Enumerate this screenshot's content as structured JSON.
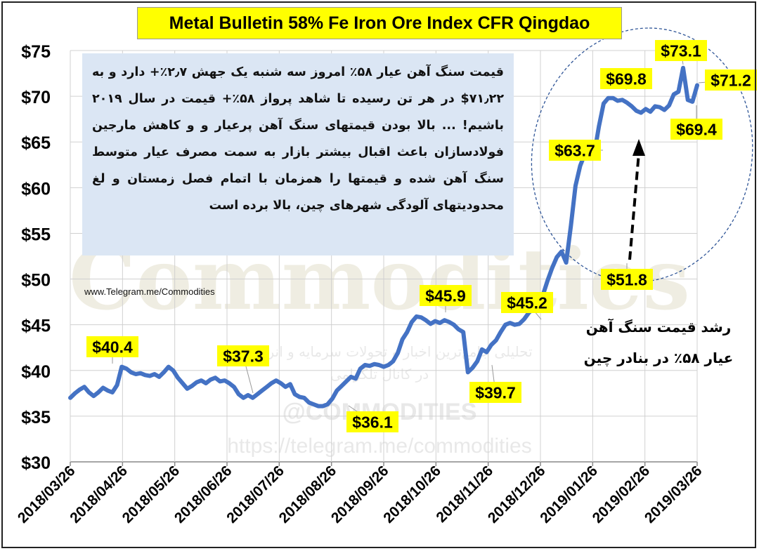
{
  "chart_data": {
    "type": "line",
    "title": "Metal Bulletin 58% Fe Iron Ore Index CFR Qingdao",
    "xlabel": "",
    "ylabel": "",
    "ylim": [
      30,
      75
    ],
    "y_ticks": [
      "$30",
      "$35",
      "$40",
      "$45",
      "$50",
      "$55",
      "$60",
      "$65",
      "$70",
      "$75"
    ],
    "x_ticks": [
      "2018/03/26",
      "2018/04/26",
      "2018/05/26",
      "2018/06/26",
      "2018/07/26",
      "2018/08/26",
      "2018/09/26",
      "2018/10/26",
      "2018/11/26",
      "2018/12/26",
      "2019/01/26",
      "2019/02/26",
      "2019/03/26"
    ],
    "grid": true,
    "series": [
      {
        "values": [
          37.0,
          37.5,
          37.9,
          38.2,
          37.6,
          37.2,
          37.6,
          38.1,
          37.8,
          37.6,
          38.4,
          40.4,
          40.2,
          39.8,
          39.6,
          39.7,
          39.5,
          39.4,
          39.6,
          39.3,
          39.8,
          40.4,
          40.0,
          39.2,
          38.6,
          38.0,
          38.3,
          38.7,
          38.9,
          38.6,
          39.0,
          39.2,
          38.8,
          38.9,
          38.6,
          38.2,
          37.4,
          37.0,
          37.3,
          37.0,
          37.4,
          37.8,
          38.2,
          38.6,
          38.9,
          38.6,
          38.2,
          38.5,
          37.4,
          37.1,
          37.0,
          36.5,
          36.3,
          36.1,
          36.1,
          36.3,
          36.9,
          37.8,
          38.3,
          38.8,
          39.3,
          39.1,
          40.2,
          40.6,
          40.5,
          40.7,
          40.6,
          40.4,
          40.6,
          41.0,
          41.9,
          43.4,
          44.2,
          45.3,
          45.9,
          45.8,
          45.5,
          45.1,
          45.4,
          45.2,
          45.5,
          45.3,
          45.0,
          44.5,
          44.2,
          39.8,
          40.3,
          41.0,
          42.3,
          42.0,
          42.8,
          43.3,
          44.2,
          45.0,
          45.2,
          45.0,
          45.1,
          45.6,
          46.3,
          46.8,
          47.5,
          48.2,
          49.8,
          51.2,
          52.4,
          53.0,
          51.8,
          55.8,
          60.2,
          62.4,
          63.7,
          63.7,
          63.7,
          66.7,
          69.2,
          69.8,
          69.8,
          69.5,
          69.6,
          69.3,
          68.9,
          68.4,
          68.2,
          68.6,
          68.3,
          68.9,
          68.8,
          68.5,
          69.0,
          70.2,
          70.5,
          73.1,
          69.6,
          69.4,
          71.2
        ],
        "dates_range": [
          "2018/03/26",
          "2019/03/26"
        ]
      }
    ],
    "annotations": [
      "$40.4",
      "$37.3",
      "$36.1",
      "$45.9",
      "$39.7",
      "$45.2",
      "$63.7",
      "$51.8",
      "$69.8",
      "$73.1",
      "$71.2",
      "$69.4"
    ]
  },
  "note_text": "قیمت سنگ آهن عیار ۵۸٪ امروز سه شنبه یک جهش ۲٫۷٪+ دارد و به ۷۱٫۲۲$ در هر تن رسیده تا شاهد پرواز ۵۸٪+ قیمت در سال ۲۰۱۹ باشیم! ... بالا بودن قیمتهای سنگ آهن پرعیار و و کاهش مارجین فولادسازان باعث اقبال بیشتر بازار به سمت مصرف عیار متوسط سنگ آهن شده و قیمتها را همزمان با اتمام فصل زمستان و لغ محدودیتهای آلودگی شهرهای چین، بالا برده است",
  "source": "www.Telegram.me/Commodities",
  "side_caption": [
    "رشد قیمت سنگ آهن",
    "عیار ۵۸٪ در بنادر چین"
  ],
  "watermark": {
    "word": "Commodities",
    "line1": "تحلیلی جامع‌ترین اخبار و تحولات سرمایه و انرژی دنیا",
    "line2": "در کانال تلگرامی",
    "handle": "@COMMODITIES",
    "url": "https://telegram.me/commodities"
  },
  "colors": {
    "line": "#4472c4",
    "label_bg": "#ffff00",
    "note_bg": "#dbe6f4",
    "ellipse": "#2f5597"
  }
}
